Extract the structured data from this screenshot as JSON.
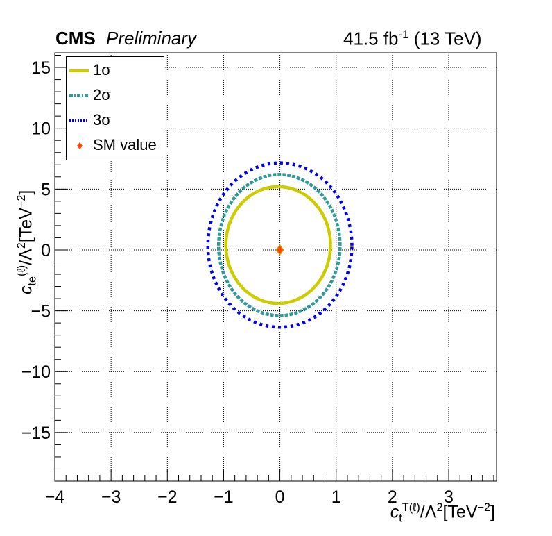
{
  "header": {
    "experiment": "CMS",
    "status": "Preliminary",
    "lumi": "41.5 fb",
    "lumi_sup": "-1",
    "energy": "(13 TeV)"
  },
  "axes": {
    "x_main": "c",
    "x_sub": "t",
    "x_sup": "T(ℓ)",
    "x_rest": "/Λ",
    "x_rest_sup": "2",
    "x_unit": "[TeV",
    "x_unit_sup": "−2",
    "x_close": "]",
    "y_main": "c",
    "y_sub": "te",
    "y_sup": "(ℓ)",
    "y_rest": "/Λ",
    "y_rest_sup": "2",
    "y_unit": "[TeV",
    "y_unit_sup": "−2",
    "y_close": "]"
  },
  "legend": {
    "items": [
      {
        "label": "1σ",
        "color": "#cccc00",
        "style": "solid"
      },
      {
        "label": "2σ",
        "color": "#339999",
        "style": "dashdot"
      },
      {
        "label": "3σ",
        "color": "#0000ee",
        "style": "dotted"
      },
      {
        "label": "SM value",
        "color": "#ff4400",
        "style": "marker"
      }
    ]
  },
  "chart_data": {
    "type": "contour",
    "xlim": [
      -4,
      3.85
    ],
    "ylim": [
      -19,
      16.2
    ],
    "xticks": [
      -4,
      -3,
      -2,
      -1,
      0,
      1,
      2,
      3
    ],
    "yticks": [
      -15,
      -10,
      -5,
      0,
      5,
      10,
      15
    ],
    "grid": true,
    "legend_position": "top-left",
    "series": [
      {
        "name": "1σ",
        "color": "#cccc00",
        "cx": -0.03,
        "cy": 0.4,
        "rx": 0.93,
        "ry_top": 4.8,
        "ry_bottom": 4.8
      },
      {
        "name": "2σ",
        "color": "#339999",
        "cx": -0.01,
        "cy": 0.35,
        "rx": 1.08,
        "ry_top": 5.85,
        "ry_bottom": 5.75
      },
      {
        "name": "3σ",
        "color": "#0000ee",
        "cx": 0.0,
        "cy": 0.35,
        "rx": 1.28,
        "ry_top": 6.8,
        "ry_bottom": 6.7
      }
    ],
    "sm_point": {
      "x": 0,
      "y": 0,
      "label": "SM value"
    }
  }
}
